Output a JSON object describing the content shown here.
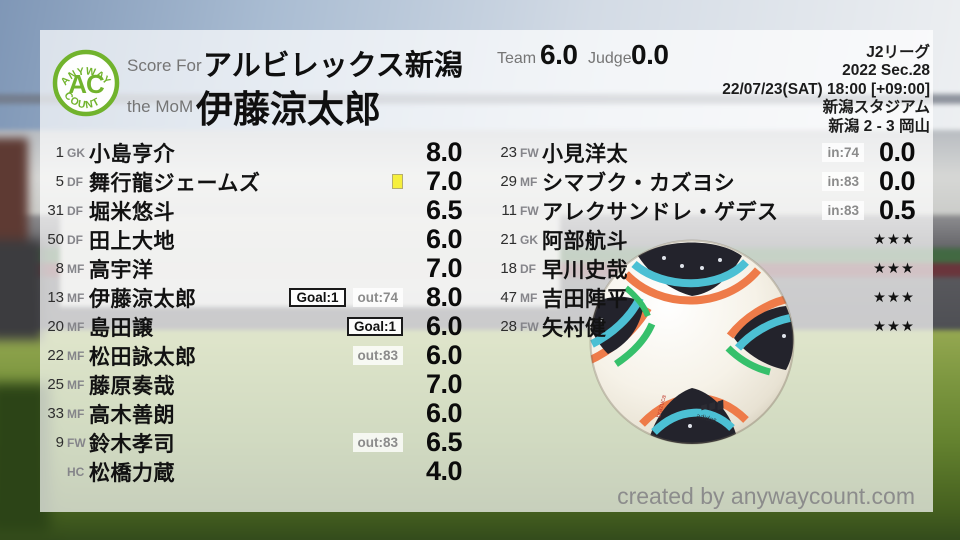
{
  "header": {
    "logo": {
      "arc_top": "ANYWAY",
      "center": "AC",
      "arc_bottom": "COUNT"
    },
    "score_for_label": "Score For",
    "team_name": "アルビレックス新潟",
    "mom_label": "the MoM",
    "mom_name": "伊藤涼太郎",
    "team_label": "Team",
    "team_score": "6.0",
    "judge_label": "Judge",
    "judge_score": "0.0",
    "match_info": [
      "J2リーグ",
      "2022 Sec.28",
      "22/07/23(SAT) 18:00 [+09:00]",
      "新潟スタジアム",
      "新潟 2 - 3 岡山"
    ]
  },
  "left_column": {
    "rows": [
      {
        "number": "1",
        "position": "GK",
        "name": "小島亨介",
        "badges": [],
        "score": "8.0"
      },
      {
        "number": "5",
        "position": "DF",
        "name": "舞行龍ジェームズ",
        "badges": [
          {
            "type": "yellow-card"
          }
        ],
        "score": "7.0"
      },
      {
        "number": "31",
        "position": "DF",
        "name": "堀米悠斗",
        "badges": [],
        "score": "6.5"
      },
      {
        "number": "50",
        "position": "DF",
        "name": "田上大地",
        "badges": [],
        "score": "6.0"
      },
      {
        "number": "8",
        "position": "MF",
        "name": "高宇洋",
        "badges": [],
        "score": "7.0"
      },
      {
        "number": "13",
        "position": "MF",
        "name": "伊藤涼太郎",
        "badges": [
          {
            "type": "goal",
            "label": "Goal:1"
          },
          {
            "type": "sub",
            "label": "out:74"
          }
        ],
        "score": "8.0"
      },
      {
        "number": "20",
        "position": "MF",
        "name": "島田譲",
        "badges": [
          {
            "type": "goal",
            "label": "Goal:1"
          }
        ],
        "score": "6.0"
      },
      {
        "number": "22",
        "position": "MF",
        "name": "松田詠太郎",
        "badges": [
          {
            "type": "sub",
            "label": "out:83"
          }
        ],
        "score": "6.0"
      },
      {
        "number": "25",
        "position": "MF",
        "name": "藤原奏哉",
        "badges": [],
        "score": "7.0"
      },
      {
        "number": "33",
        "position": "MF",
        "name": "高木善朗",
        "badges": [],
        "score": "6.0"
      },
      {
        "number": "9",
        "position": "FW",
        "name": "鈴木孝司",
        "badges": [
          {
            "type": "sub",
            "label": "out:83"
          }
        ],
        "score": "6.5"
      },
      {
        "number": "",
        "position": "HC",
        "name": "松橋力蔵",
        "badges": [],
        "score": "4.0"
      }
    ]
  },
  "right_column": {
    "rows": [
      {
        "number": "23",
        "position": "FW",
        "name": "小見洋太",
        "badges": [
          {
            "type": "sub",
            "label": "in:74"
          }
        ],
        "score": "0.0"
      },
      {
        "number": "29",
        "position": "MF",
        "name": "シマブク・カズヨシ",
        "badges": [
          {
            "type": "sub",
            "label": "in:83"
          }
        ],
        "score": "0.0"
      },
      {
        "number": "11",
        "position": "FW",
        "name": "アレクサンドレ・ゲデス",
        "badges": [
          {
            "type": "sub",
            "label": "in:83"
          }
        ],
        "score": "0.5"
      },
      {
        "number": "21",
        "position": "GK",
        "name": "阿部航斗",
        "badges": [],
        "score": "★★★",
        "stars": true
      },
      {
        "number": "18",
        "position": "DF",
        "name": "早川史哉",
        "badges": [],
        "score": "★★★",
        "stars": true
      },
      {
        "number": "47",
        "position": "MF",
        "name": "吉田陣平",
        "badges": [],
        "score": "★★★",
        "stars": true
      },
      {
        "number": "28",
        "position": "FW",
        "name": "矢村健",
        "badges": [],
        "score": "★★★",
        "stars": true
      }
    ]
  },
  "footer": {
    "credit": "created by anywaycount.com"
  },
  "colors": {
    "accent_green": "#71b32d",
    "yellow_card": "#f6ef3d",
    "label_gray": "#757575"
  }
}
